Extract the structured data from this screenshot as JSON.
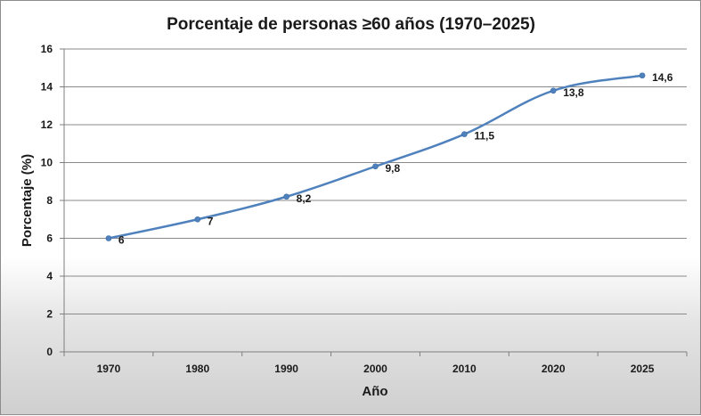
{
  "chart_data": {
    "type": "line",
    "title": "Porcentaje de personas ≥60 años (1970–2025)",
    "xlabel": "Año",
    "ylabel": "Porcentaje (%)",
    "categories": [
      "1970",
      "1980",
      "1990",
      "2000",
      "2010",
      "2020",
      "2025"
    ],
    "series": [
      {
        "values": [
          6,
          7,
          8.2,
          9.8,
          11.5,
          13.8,
          14.6
        ],
        "labels": [
          "6",
          "7",
          "8,2",
          "9,8",
          "11,5",
          "13,8",
          "14,6"
        ]
      }
    ],
    "ylim": [
      0,
      16
    ],
    "yticks": [
      0,
      2,
      4,
      6,
      8,
      10,
      12,
      14,
      16
    ],
    "grid": true,
    "legend": "none",
    "line_color": "#4f81bd",
    "marker_color": "#4f81bd"
  }
}
